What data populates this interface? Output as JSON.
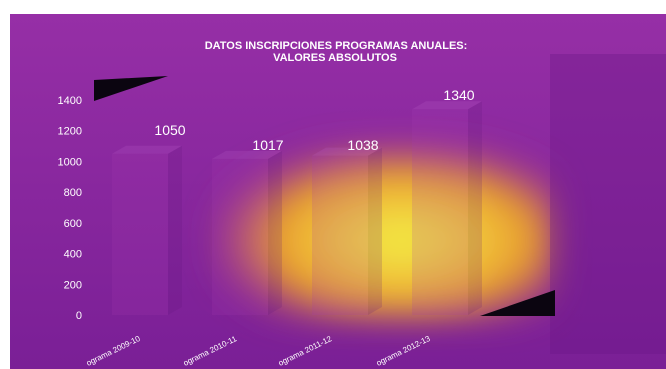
{
  "chart_data": {
    "type": "bar",
    "title": "DATOS INSCRIPCIONES PROGRAMAS ANUALES:",
    "subtitle": "VALORES ABSOLUTOS",
    "categories": [
      "ograma 2009-10",
      "ograma 2010-11",
      "ograma 2011-12",
      "ograma 2012-13"
    ],
    "values": [
      1050,
      1017,
      1038,
      1340
    ],
    "value_labels": [
      "1050",
      "1017",
      "1038",
      "1340"
    ],
    "y_ticks": [
      "1400",
      "1200",
      "1000",
      "800",
      "600",
      "400",
      "200",
      "0"
    ],
    "ylim": [
      0,
      1400
    ],
    "grid": false,
    "legend": "none",
    "style": "3d-column"
  },
  "colors": {
    "background": "#7a1f96",
    "background_light": "#962fa6",
    "glow_center": "#f2ee45",
    "glow_mid": "#e79a2e",
    "glow_edge": "#c14a6e",
    "text": "#ffffff",
    "dark": "#0b0510"
  }
}
